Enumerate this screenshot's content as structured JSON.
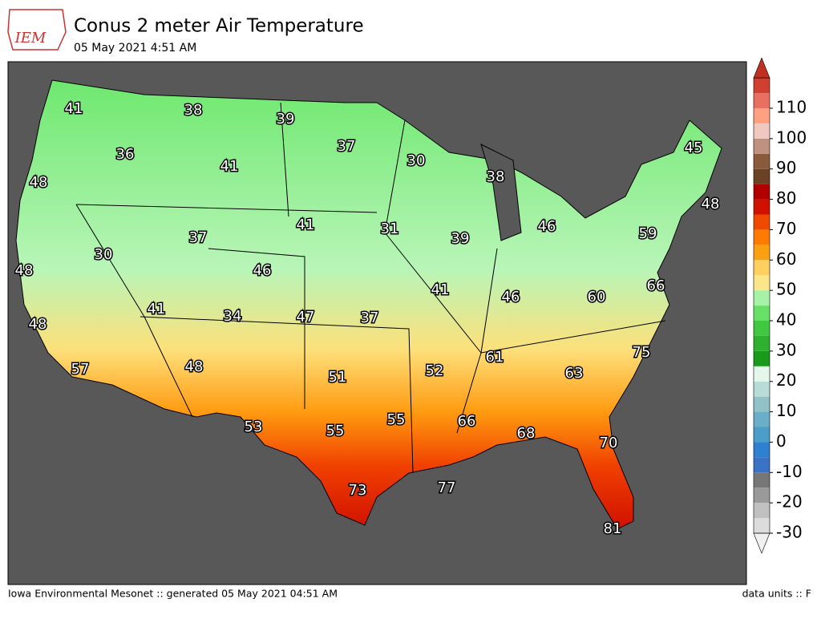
{
  "header": {
    "logo": "IEM",
    "title": "Conus 2 meter Air Temperature",
    "subtitle": "05 May 2021 4:51 AM"
  },
  "map": {
    "stations": [
      41,
      38,
      39,
      37,
      30,
      38,
      45,
      48,
      36,
      41,
      48,
      59,
      46,
      39,
      31,
      41,
      37,
      30,
      46,
      48,
      66,
      60,
      46,
      41,
      41,
      34,
      47,
      37,
      48,
      75,
      61,
      63,
      52,
      51,
      48,
      57,
      53,
      55,
      55,
      66,
      68,
      70,
      77,
      73,
      81
    ]
  },
  "colorbar": {
    "ticks": [
      -30,
      -20,
      -10,
      0,
      10,
      20,
      30,
      40,
      50,
      60,
      70,
      80,
      90,
      100,
      110
    ],
    "colors": [
      "#dcdcdc",
      "#c0c0c0",
      "#9a9a9a",
      "#777777",
      "#3a73c5",
      "#2f80d0",
      "#4a9ec8",
      "#6aaec8",
      "#90c2c8",
      "#b8ddd6",
      "#e4f7ea",
      "#1a9a1a",
      "#2fb02f",
      "#40c840",
      "#66e066",
      "#a6f2a6",
      "#fde68a",
      "#fdd060",
      "#fba010",
      "#ff7a00",
      "#f04a00",
      "#d01000",
      "#b00000",
      "#6b4226",
      "#8b5a3c",
      "#c09080",
      "#f0c8c0",
      "#ffa080",
      "#e87060",
      "#d04030"
    ]
  },
  "footer": {
    "left": "Iowa Environmental Mesonet :: generated 05 May 2021 04:51 AM",
    "right": "data units :: F"
  }
}
